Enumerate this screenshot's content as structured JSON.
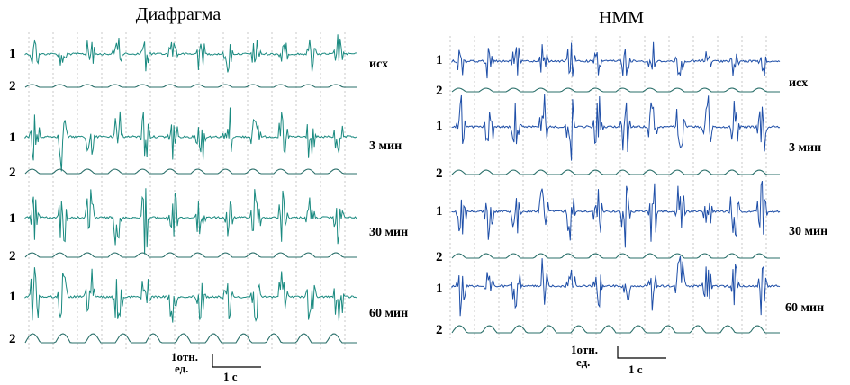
{
  "panels": [
    {
      "title": "Диафрагма",
      "signal_color": "#1a8a80",
      "rows": [
        {
          "time_label": "исх"
        },
        {
          "time_label": "3 мин"
        },
        {
          "time_label": "30 мин"
        },
        {
          "time_label": "60 мин"
        }
      ]
    },
    {
      "title": "НММ",
      "signal_color": "#1f4fa8",
      "rows": [
        {
          "time_label": "исх"
        },
        {
          "time_label": "3 мин"
        },
        {
          "time_label": "30 мин"
        },
        {
          "time_label": "60 мин"
        }
      ]
    }
  ],
  "trace_labels": {
    "emg": "1",
    "breath": "2"
  },
  "scale_bar": {
    "amplitude_line1": "1отн.",
    "amplitude_line2": "ед.",
    "time": "1 с"
  },
  "colors": {
    "breath_trace": "#2a6f6a",
    "grid": "#c8c8c8"
  }
}
